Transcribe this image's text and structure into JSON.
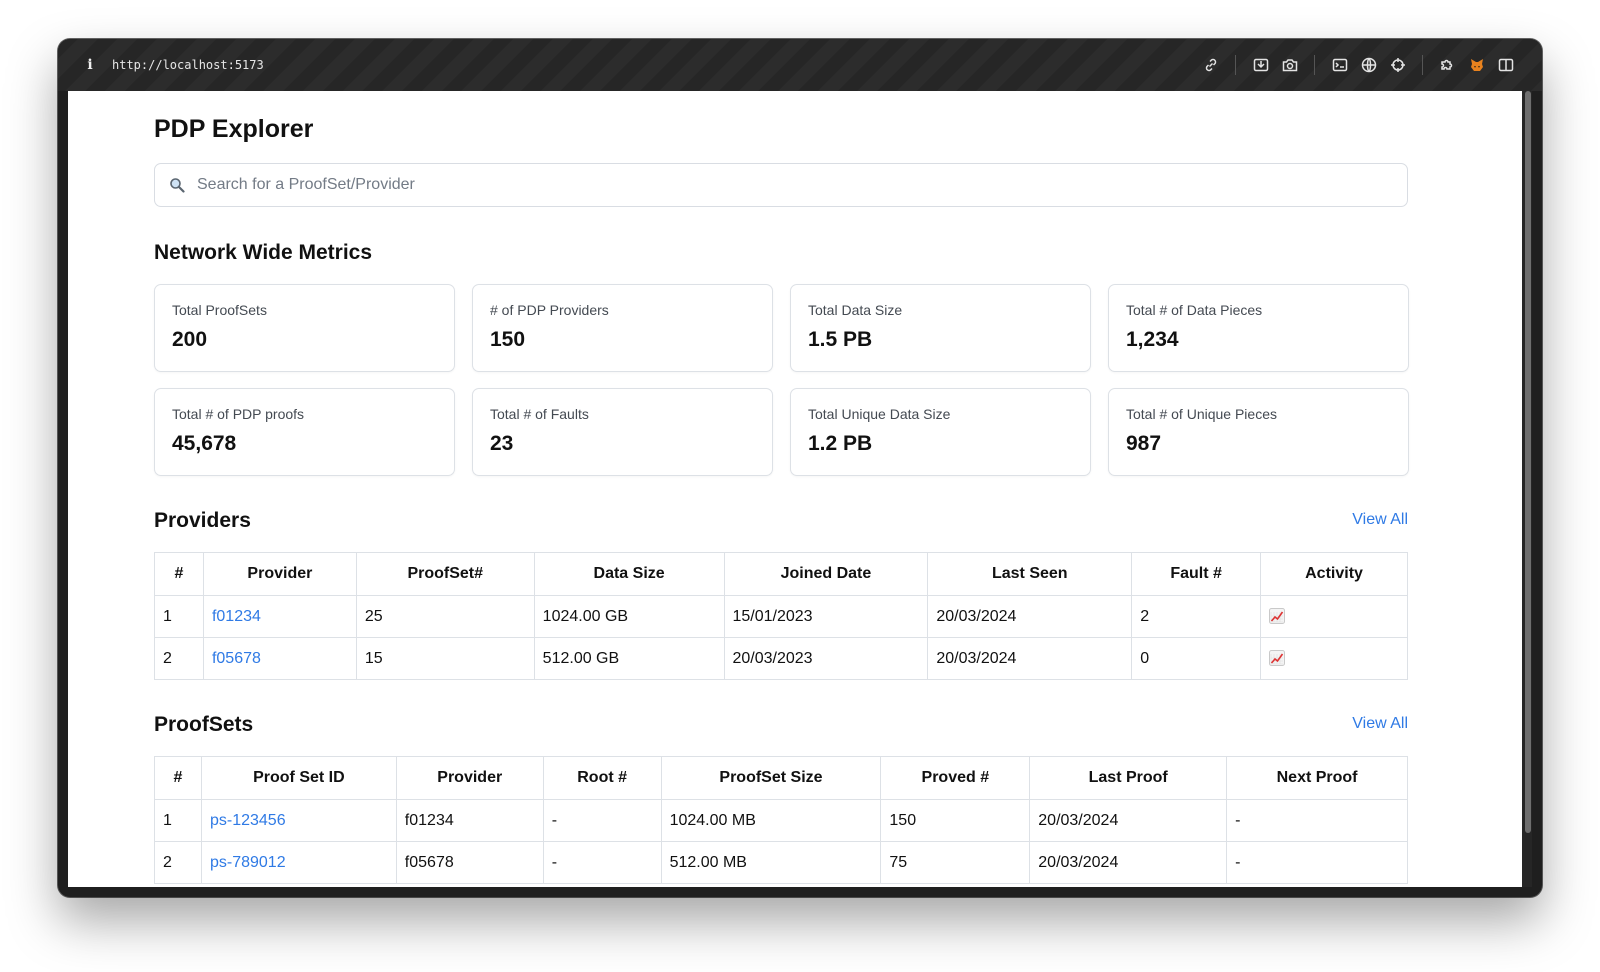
{
  "browser": {
    "url": "http://localhost:5173"
  },
  "page": {
    "title": "PDP Explorer",
    "search_placeholder": "Search for a ProofSet/Provider"
  },
  "metrics": {
    "title": "Network Wide Metrics",
    "cards": [
      {
        "label": "Total ProofSets",
        "value": "200"
      },
      {
        "label": "# of PDP Providers",
        "value": "150"
      },
      {
        "label": "Total Data Size",
        "value": "1.5 PB"
      },
      {
        "label": "Total # of Data Pieces",
        "value": "1,234"
      },
      {
        "label": "Total # of PDP proofs",
        "value": "45,678"
      },
      {
        "label": "Total # of Faults",
        "value": "23"
      },
      {
        "label": "Total Unique Data Size",
        "value": "1.2 PB"
      },
      {
        "label": "Total # of Unique Pieces",
        "value": "987"
      }
    ]
  },
  "providers": {
    "title": "Providers",
    "view_all": "View All",
    "columns": [
      "#",
      "Provider",
      "ProofSet#",
      "Data Size",
      "Joined Date",
      "Last Seen",
      "Fault #",
      "Activity"
    ],
    "rows": [
      {
        "index": "1",
        "provider": "f01234",
        "proofsets": "25",
        "data_size": "1024.00 GB",
        "joined": "15/01/2023",
        "last_seen": "20/03/2024",
        "faults": "2",
        "activity_icon": "chart-increasing-icon"
      },
      {
        "index": "2",
        "provider": "f05678",
        "proofsets": "15",
        "data_size": "512.00 GB",
        "joined": "20/03/2023",
        "last_seen": "20/03/2024",
        "faults": "0",
        "activity_icon": "chart-increasing-icon"
      }
    ]
  },
  "proofsets": {
    "title": "ProofSets",
    "view_all": "View All",
    "columns": [
      "#",
      "Proof Set ID",
      "Provider",
      "Root #",
      "ProofSet Size",
      "Proved #",
      "Last Proof",
      "Next Proof"
    ],
    "rows": [
      {
        "index": "1",
        "id": "ps-123456",
        "provider": "f01234",
        "root": "-",
        "size": "1024.00 MB",
        "proved": "150",
        "last_proof": "20/03/2024",
        "next_proof": "-"
      },
      {
        "index": "2",
        "id": "ps-789012",
        "provider": "f05678",
        "root": "-",
        "size": "512.00 MB",
        "proved": "75",
        "last_proof": "20/03/2024",
        "next_proof": "-"
      }
    ]
  },
  "colors": {
    "link": "#2f7ae5",
    "border": "#dde1e6",
    "titlebar": "#262626"
  }
}
